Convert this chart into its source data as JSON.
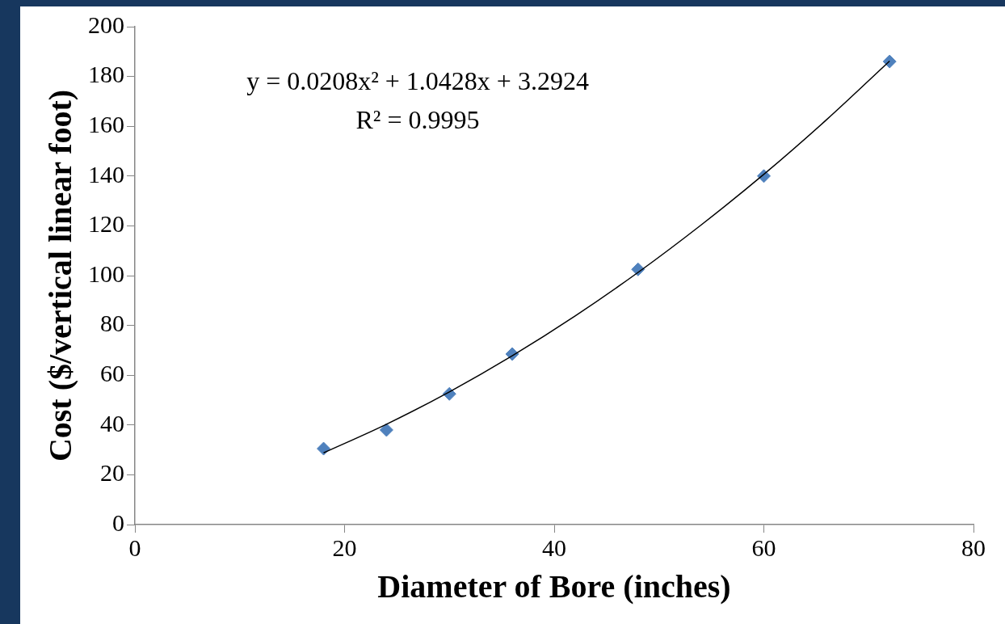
{
  "chart_data": {
    "type": "scatter",
    "xlabel": "Diameter of Bore (inches)",
    "ylabel": "Cost ($/vertical linear foot)",
    "xlim": [
      0,
      80
    ],
    "xticks": [
      0,
      20,
      40,
      60,
      80
    ],
    "ylim": [
      0,
      200
    ],
    "yticks": [
      0,
      20,
      40,
      60,
      80,
      100,
      120,
      140,
      160,
      180,
      200
    ],
    "grid": false,
    "legend": false,
    "marker": "diamond",
    "series": [
      {
        "type": "scatter",
        "color": "#4f81bd",
        "x": [
          18,
          24,
          30,
          36,
          48,
          60,
          72
        ],
        "values": [
          30.5,
          38,
          52.5,
          68.5,
          102.5,
          140,
          186
        ]
      },
      {
        "type": "line",
        "color": "#000000",
        "line_style": "solid",
        "marker": "none",
        "x": [
          18,
          24,
          30,
          36,
          42,
          48,
          54,
          60,
          66,
          72
        ],
        "values": [
          28.8,
          40.3,
          53.3,
          67.8,
          83.8,
          101.3,
          120.3,
          140.7,
          162.7,
          186.2
        ]
      }
    ],
    "annotations": [
      "y = 0.0208x² + 1.0428x + 3.2924",
      "R² = 0.9995"
    ]
  }
}
